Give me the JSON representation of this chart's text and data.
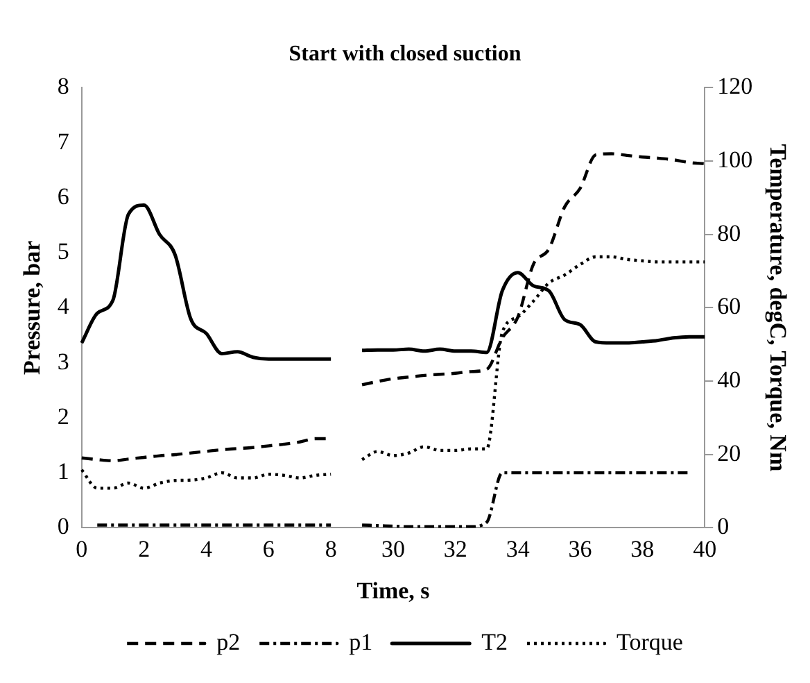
{
  "chart_data": {
    "type": "line",
    "title": "Start with closed suction",
    "xlabel": "Time, s",
    "ylabel": "Pressure, bar",
    "y2label": "Temperature, degC, Torque, Nm",
    "categories": [
      "0",
      null,
      null,
      null,
      "2",
      null,
      null,
      null,
      "4",
      null,
      null,
      null,
      "6",
      null,
      null,
      null,
      "8",
      null,
      null,
      null,
      "30",
      null,
      null,
      null,
      "32",
      null,
      null,
      null,
      "34",
      null,
      null,
      null,
      "36",
      null,
      null,
      null,
      "38",
      null,
      null,
      null,
      "40"
    ],
    "series": [
      {
        "name": "p2",
        "color": "#000000",
        "line_style": "dashed",
        "values": [
          1.27,
          1.24,
          1.22,
          1.25,
          1.28,
          1.31,
          1.33,
          1.36,
          1.39,
          1.42,
          1.44,
          1.46,
          1.49,
          1.52,
          1.56,
          1.62,
          1.62,
          null,
          2.6,
          2.66,
          2.71,
          2.74,
          2.77,
          2.79,
          2.81,
          2.84,
          2.88,
          3.45,
          3.83,
          4.79,
          5.07,
          5.83,
          6.17,
          6.78,
          6.8,
          6.77,
          6.74,
          6.72,
          6.69,
          6.64,
          6.62
        ]
      },
      {
        "name": "p1",
        "color": "#000000",
        "line_style": "dashdot",
        "values": [
          null,
          0.05,
          0.05,
          0.05,
          0.05,
          0.05,
          0.05,
          0.05,
          0.05,
          0.05,
          0.05,
          0.05,
          0.05,
          0.05,
          0.05,
          0.05,
          0.05,
          null,
          0.05,
          0.04,
          0.03,
          0.02,
          0.02,
          0.02,
          0.02,
          0.02,
          0.1,
          1.0,
          1.0,
          1.0,
          1.0,
          1.0,
          1.0,
          1.0,
          1.0,
          1.0,
          1.0,
          1.0,
          1.0,
          1.0,
          null
        ]
      },
      {
        "name": "T2",
        "color": "#000000",
        "line_style": "solid",
        "axis": "y2",
        "values": [
          50.4,
          58.5,
          62,
          85.5,
          88,
          80,
          74.4,
          57,
          53,
          47.5,
          48,
          46.5,
          46,
          46,
          46,
          46,
          46,
          null,
          48.4,
          48.5,
          48.5,
          48.7,
          48.2,
          48.7,
          48.2,
          48.2,
          47.8,
          64.6,
          69.6,
          66,
          64.6,
          56.8,
          55.4,
          50.7,
          50.4,
          50.4,
          50.7,
          51.1,
          51.8,
          52.1,
          52.1
        ]
      },
      {
        "name": "Torque",
        "color": "#000000",
        "line_style": "dotted",
        "axis": "y2",
        "values": [
          15.8,
          10.8,
          10.8,
          12.2,
          10.8,
          12.2,
          12.9,
          13,
          13.6,
          15,
          13.6,
          13.6,
          14.6,
          14.3,
          13.6,
          14.3,
          14.6,
          null,
          18.6,
          20.8,
          19.7,
          20.4,
          22.1,
          21.1,
          21.1,
          21.5,
          21.5,
          53.2,
          57.5,
          61.8,
          66.8,
          68.9,
          71.8,
          73.9,
          73.9,
          73.2,
          72.8,
          72.5,
          72.5,
          72.5,
          72.5
        ]
      }
    ],
    "ylim": [
      0,
      8
    ],
    "yticks": [
      0,
      1,
      2,
      3,
      4,
      5,
      6,
      7,
      8
    ],
    "y2lim": [
      0,
      120
    ],
    "y2ticks": [
      0,
      20,
      40,
      60,
      80,
      100,
      120
    ],
    "grid": false,
    "legend": "bottom",
    "marker": "none"
  }
}
